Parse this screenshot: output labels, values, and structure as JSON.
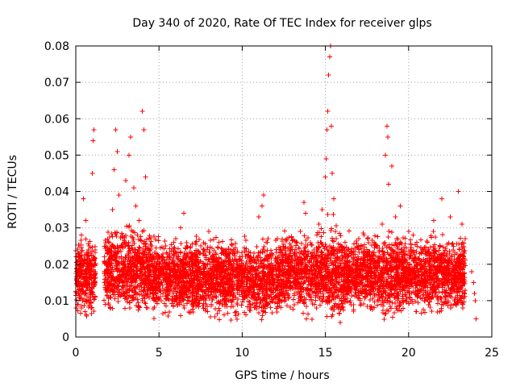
{
  "chart_data": {
    "type": "scatter",
    "title": "Day 340 of 2020, Rate Of TEC Index for receiver glps",
    "xlabel": "GPS time / hours",
    "ylabel": "ROTI / TECUs",
    "xlim": [
      0,
      25
    ],
    "ylim": [
      0,
      0.08
    ],
    "xticks": [
      0,
      5,
      10,
      15,
      20,
      25
    ],
    "xtick_labels": [
      "0",
      "5",
      "10",
      "15",
      "20",
      "25"
    ],
    "yticks": [
      0,
      0.01,
      0.02,
      0.03,
      0.04,
      0.05,
      0.06,
      0.07,
      0.08
    ],
    "ytick_labels": [
      "0",
      "0.01",
      "0.02",
      "0.03",
      "0.04",
      "0.05",
      "0.06",
      "0.07",
      "0.08"
    ],
    "grid": true,
    "marker": "+",
    "color": "#ff0000",
    "series": [
      {
        "name": "ROTI",
        "points": [
          [
            0.05,
            0.016
          ],
          [
            0.1,
            0.012
          ],
          [
            0.15,
            0.009
          ],
          [
            0.2,
            0.023
          ],
          [
            0.25,
            0.018
          ],
          [
            0.3,
            0.014
          ],
          [
            0.35,
            0.028
          ],
          [
            0.4,
            0.01
          ],
          [
            0.45,
            0.038
          ],
          [
            0.5,
            0.021
          ],
          [
            0.55,
            0.007
          ],
          [
            0.6,
            0.032
          ],
          [
            0.7,
            0.015
          ],
          [
            0.8,
            0.025
          ],
          [
            0.9,
            0.011
          ],
          [
            1.0,
            0.045
          ],
          [
            1.05,
            0.054
          ],
          [
            1.1,
            0.057
          ],
          [
            1.15,
            0.02
          ],
          [
            1.8,
            0.013
          ],
          [
            2.0,
            0.024
          ],
          [
            2.2,
            0.035
          ],
          [
            2.3,
            0.046
          ],
          [
            2.4,
            0.057
          ],
          [
            2.5,
            0.051
          ],
          [
            2.6,
            0.039
          ],
          [
            2.8,
            0.028
          ],
          [
            3.0,
            0.043
          ],
          [
            3.2,
            0.05
          ],
          [
            3.3,
            0.055
          ],
          [
            3.5,
            0.041
          ],
          [
            3.6,
            0.036
          ],
          [
            3.8,
            0.032
          ],
          [
            4.0,
            0.062
          ],
          [
            4.1,
            0.057
          ],
          [
            4.2,
            0.044
          ],
          [
            4.4,
            0.027
          ],
          [
            4.8,
            0.019
          ],
          [
            5.2,
            0.022
          ],
          [
            5.5,
            0.016
          ],
          [
            6.0,
            0.027
          ],
          [
            6.3,
            0.03
          ],
          [
            6.5,
            0.034
          ],
          [
            7.0,
            0.018
          ],
          [
            7.5,
            0.025
          ],
          [
            8.0,
            0.029
          ],
          [
            8.5,
            0.021
          ],
          [
            9.0,
            0.013
          ],
          [
            9.5,
            0.024
          ],
          [
            10.0,
            0.019
          ],
          [
            10.5,
            0.022
          ],
          [
            11.0,
            0.033
          ],
          [
            11.2,
            0.036
          ],
          [
            11.3,
            0.039
          ],
          [
            11.5,
            0.026
          ],
          [
            12.0,
            0.021
          ],
          [
            12.5,
            0.016
          ],
          [
            13.0,
            0.024
          ],
          [
            13.5,
            0.029
          ],
          [
            13.7,
            0.037
          ],
          [
            13.8,
            0.034
          ],
          [
            14.2,
            0.023
          ],
          [
            14.6,
            0.031
          ],
          [
            14.8,
            0.035
          ],
          [
            15.0,
            0.044
          ],
          [
            15.05,
            0.049
          ],
          [
            15.1,
            0.057
          ],
          [
            15.15,
            0.062
          ],
          [
            15.2,
            0.072
          ],
          [
            15.25,
            0.077
          ],
          [
            15.3,
            0.08
          ],
          [
            15.35,
            0.058
          ],
          [
            15.4,
            0.045
          ],
          [
            15.5,
            0.038
          ],
          [
            15.6,
            0.029
          ],
          [
            15.8,
            0.009
          ],
          [
            15.9,
            0.004
          ],
          [
            16.5,
            0.019
          ],
          [
            17.0,
            0.027
          ],
          [
            17.5,
            0.024
          ],
          [
            18.0,
            0.025
          ],
          [
            18.4,
            0.031
          ],
          [
            18.6,
            0.05
          ],
          [
            18.7,
            0.058
          ],
          [
            18.75,
            0.055
          ],
          [
            18.8,
            0.042
          ],
          [
            19.0,
            0.047
          ],
          [
            19.2,
            0.033
          ],
          [
            19.5,
            0.036
          ],
          [
            20.0,
            0.029
          ],
          [
            20.5,
            0.026
          ],
          [
            21.0,
            0.021
          ],
          [
            21.5,
            0.032
          ],
          [
            22.0,
            0.038
          ],
          [
            22.5,
            0.033
          ],
          [
            23.0,
            0.04
          ],
          [
            23.2,
            0.031
          ],
          [
            23.4,
            0.027
          ],
          [
            23.8,
            0.018
          ],
          [
            23.9,
            0.015
          ],
          [
            23.95,
            0.012
          ],
          [
            24.0,
            0.01
          ],
          [
            24.05,
            0.005
          ]
        ],
        "band": {
          "description": "dense cloud of measurements",
          "segments": [
            {
              "x": [
                0.0,
                1.2
              ],
              "y": [
                0.004,
                0.03
              ]
            },
            {
              "x": [
                1.7,
                4.6
              ],
              "y": [
                0.004,
                0.033
              ]
            },
            {
              "x": [
                4.6,
                12.3
              ],
              "y": [
                0.003,
                0.03
              ]
            },
            {
              "x": [
                12.3,
                15.0
              ],
              "y": [
                0.004,
                0.032
              ]
            },
            {
              "x": [
                15.0,
                16.0
              ],
              "y": [
                0.001,
                0.035
              ]
            },
            {
              "x": [
                16.0,
                23.4
              ],
              "y": [
                0.004,
                0.031
              ]
            }
          ]
        }
      }
    ]
  }
}
